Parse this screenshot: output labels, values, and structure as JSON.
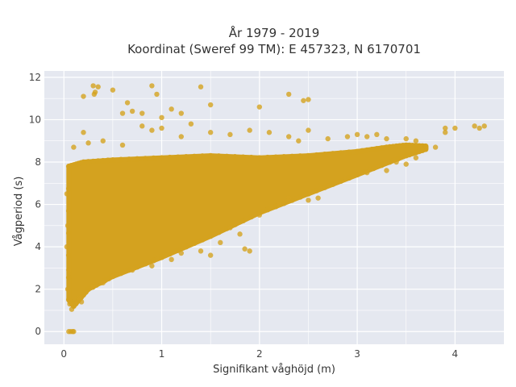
{
  "chart_data": {
    "type": "scatter",
    "title": "År 1979 - 2019",
    "subtitle": "Koordinat (Sweref 99 TM): E 457323, N 6170701",
    "xlabel": "Signifikant våghöjd (m)",
    "ylabel": "Vågperiod (s)",
    "xlim": [
      -0.2,
      4.5
    ],
    "ylim": [
      -0.6,
      12.3
    ],
    "xticks": [
      0,
      1,
      2,
      3,
      4
    ],
    "yticks": [
      0,
      2,
      4,
      6,
      8,
      10,
      12
    ],
    "xtick_labels": [
      "0",
      "1",
      "2",
      "3",
      "4"
    ],
    "ytick_labels": [
      "0",
      "2",
      "4",
      "6",
      "8",
      "10",
      "12"
    ],
    "grid": true,
    "marker_color": "#D4A21F",
    "background_color": "#E5E8F0",
    "grid_color": "#FFFFFF",
    "dense_region": {
      "description": "",
      "upper_boundary": [
        [
          0.05,
          7.8
        ],
        [
          0.2,
          8.0
        ],
        [
          0.5,
          8.1
        ],
        [
          1.0,
          8.2
        ],
        [
          1.5,
          8.3
        ],
        [
          2.0,
          8.2
        ],
        [
          2.5,
          8.3
        ],
        [
          3.0,
          8.5
        ],
        [
          3.3,
          8.7
        ],
        [
          3.5,
          8.8
        ],
        [
          3.7,
          8.75
        ]
      ],
      "lower_boundary": [
        [
          3.7,
          8.6
        ],
        [
          3.5,
          8.3
        ],
        [
          3.0,
          7.4
        ],
        [
          2.5,
          6.5
        ],
        [
          2.0,
          5.6
        ],
        [
          1.5,
          4.5
        ],
        [
          1.0,
          3.5
        ],
        [
          0.5,
          2.6
        ],
        [
          0.25,
          2.0
        ],
        [
          0.1,
          1.2
        ],
        [
          0.05,
          1.5
        ]
      ]
    },
    "points": [
      [
        0.05,
        0.0
      ],
      [
        0.07,
        0.0
      ],
      [
        0.09,
        0.0
      ],
      [
        0.1,
        0.0
      ],
      [
        0.06,
        1.3
      ],
      [
        0.08,
        1.05
      ],
      [
        0.04,
        2.0
      ],
      [
        0.05,
        2.9
      ],
      [
        0.3,
        11.6
      ],
      [
        0.35,
        11.55
      ],
      [
        0.31,
        11.2
      ],
      [
        0.2,
        11.1
      ],
      [
        0.5,
        11.4
      ],
      [
        0.32,
        11.3
      ],
      [
        0.9,
        11.6
      ],
      [
        1.4,
        11.55
      ],
      [
        0.95,
        11.2
      ],
      [
        1.5,
        10.7
      ],
      [
        2.0,
        10.6
      ],
      [
        2.3,
        11.2
      ],
      [
        2.45,
        10.9
      ],
      [
        2.5,
        10.95
      ],
      [
        0.65,
        10.8
      ],
      [
        0.6,
        10.3
      ],
      [
        0.7,
        10.4
      ],
      [
        0.8,
        10.3
      ],
      [
        1.0,
        10.1
      ],
      [
        1.1,
        10.5
      ],
      [
        1.2,
        10.3
      ],
      [
        0.8,
        9.7
      ],
      [
        0.9,
        9.5
      ],
      [
        1.0,
        9.6
      ],
      [
        1.3,
        9.8
      ],
      [
        1.2,
        9.2
      ],
      [
        1.5,
        9.4
      ],
      [
        1.7,
        9.3
      ],
      [
        1.9,
        9.5
      ],
      [
        2.1,
        9.4
      ],
      [
        2.3,
        9.2
      ],
      [
        2.5,
        9.5
      ],
      [
        2.4,
        9.0
      ],
      [
        2.7,
        9.1
      ],
      [
        2.9,
        9.2
      ],
      [
        3.0,
        9.3
      ],
      [
        3.1,
        9.2
      ],
      [
        3.2,
        9.3
      ],
      [
        3.3,
        9.1
      ],
      [
        3.5,
        9.1
      ],
      [
        3.6,
        9.0
      ],
      [
        0.2,
        9.4
      ],
      [
        0.1,
        8.7
      ],
      [
        0.25,
        8.9
      ],
      [
        0.4,
        9.0
      ],
      [
        0.6,
        8.8
      ],
      [
        3.8,
        8.7
      ],
      [
        3.9,
        9.6
      ],
      [
        4.0,
        9.6
      ],
      [
        4.2,
        9.7
      ],
      [
        4.25,
        9.6
      ],
      [
        4.3,
        9.7
      ],
      [
        3.9,
        9.4
      ],
      [
        3.4,
        8.0
      ],
      [
        3.5,
        7.9
      ],
      [
        3.6,
        8.2
      ],
      [
        3.3,
        7.6
      ],
      [
        3.1,
        7.5
      ],
      [
        2.6,
        6.3
      ],
      [
        2.5,
        6.2
      ],
      [
        2.2,
        6.0
      ],
      [
        2.3,
        6.3
      ],
      [
        2.0,
        5.5
      ],
      [
        1.8,
        4.6
      ],
      [
        1.7,
        4.9
      ],
      [
        1.85,
        3.9
      ],
      [
        1.9,
        3.8
      ],
      [
        1.6,
        4.2
      ],
      [
        1.4,
        3.8
      ],
      [
        1.5,
        3.6
      ],
      [
        1.2,
        3.7
      ],
      [
        1.1,
        3.4
      ],
      [
        0.9,
        3.1
      ],
      [
        0.7,
        2.9
      ],
      [
        0.5,
        2.6
      ],
      [
        0.4,
        2.3
      ],
      [
        0.3,
        2.1
      ],
      [
        0.15,
        1.6
      ],
      [
        0.12,
        1.3
      ],
      [
        0.18,
        1.4
      ],
      [
        0.03,
        4.0
      ],
      [
        0.04,
        5.0
      ],
      [
        0.03,
        6.5
      ]
    ]
  }
}
